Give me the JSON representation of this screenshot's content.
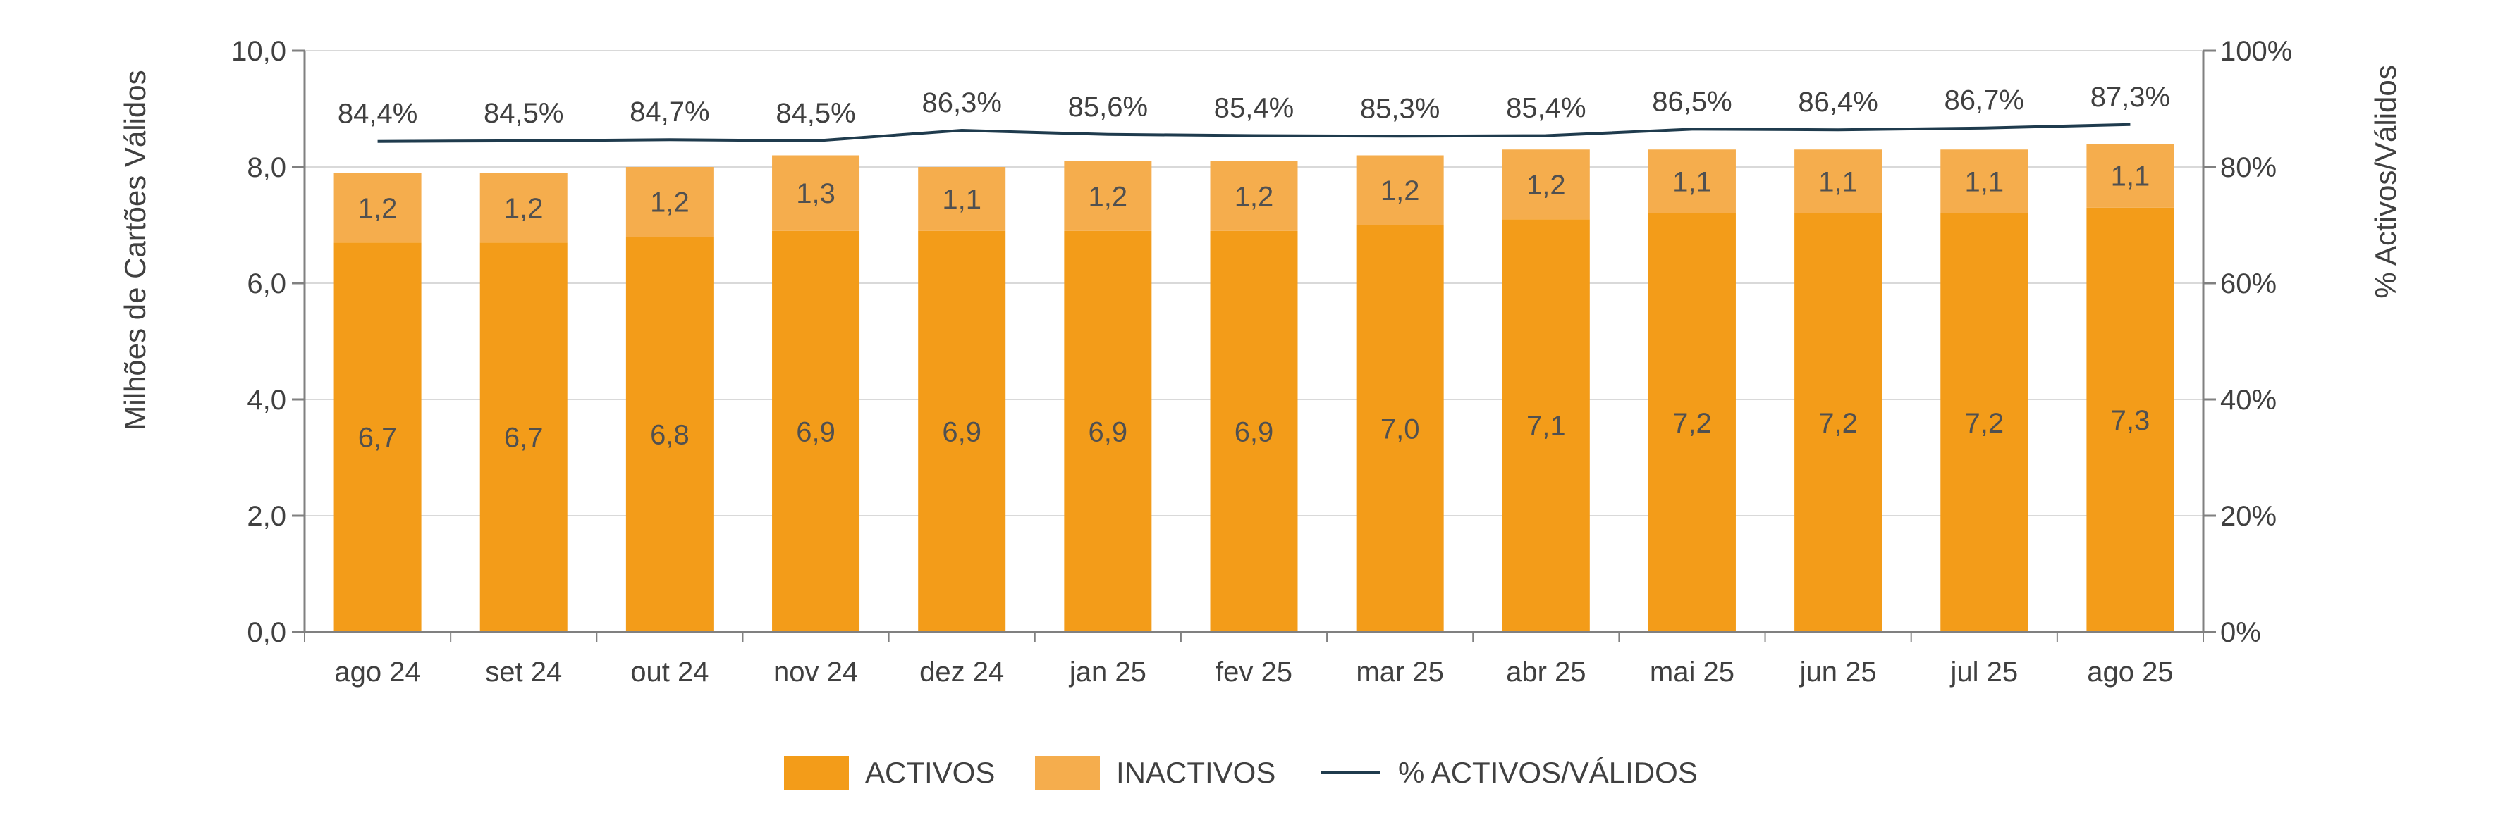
{
  "chart_data": {
    "type": "bar",
    "stacked": true,
    "categories": [
      "ago 24",
      "set 24",
      "out 24",
      "nov 24",
      "dez 24",
      "jan 25",
      "fev 25",
      "mar 25",
      "abr 25",
      "mai 25",
      "jun 25",
      "jul 25",
      "ago 25"
    ],
    "series": [
      {
        "name": "ACTIVOS",
        "type": "bar",
        "color": "#f39c19",
        "values": [
          6.7,
          6.7,
          6.8,
          6.9,
          6.9,
          6.9,
          6.9,
          7.0,
          7.1,
          7.2,
          7.2,
          7.2,
          7.3
        ],
        "labels": [
          "6,7",
          "6,7",
          "6,8",
          "6,9",
          "6,9",
          "6,9",
          "6,9",
          "7,0",
          "7,1",
          "7,2",
          "7,2",
          "7,2",
          "7,3"
        ]
      },
      {
        "name": "INACTIVOS",
        "type": "bar",
        "color": "#f5ad4d",
        "values": [
          1.2,
          1.2,
          1.2,
          1.3,
          1.1,
          1.2,
          1.2,
          1.2,
          1.2,
          1.1,
          1.1,
          1.1,
          1.1
        ],
        "labels": [
          "1,2",
          "1,2",
          "1,2",
          "1,3",
          "1,1",
          "1,2",
          "1,2",
          "1,2",
          "1,2",
          "1,1",
          "1,1",
          "1,1",
          "1,1"
        ]
      },
      {
        "name": "% ACTIVOS/VÁLIDOS",
        "type": "line",
        "axis": "right",
        "color": "#1f3b4d",
        "values": [
          84.4,
          84.5,
          84.7,
          84.5,
          86.3,
          85.6,
          85.4,
          85.3,
          85.4,
          86.5,
          86.4,
          86.7,
          87.3
        ],
        "labels": [
          "84,4%",
          "84,5%",
          "84,7%",
          "84,5%",
          "86,3%",
          "85,6%",
          "85,4%",
          "85,3%",
          "85,4%",
          "86,5%",
          "86,4%",
          "86,7%",
          "87,3%"
        ]
      }
    ],
    "ylabel": "Milhões de Cartões Válidos",
    "ylabel_right": "% Activos/Válidos",
    "ylim": [
      0,
      10
    ],
    "ylim_right": [
      0,
      100
    ],
    "yticks": [
      0,
      2,
      4,
      6,
      8,
      10
    ],
    "ytick_labels": [
      "0,0",
      "2,0",
      "4,0",
      "6,0",
      "8,0",
      "10,0"
    ],
    "yticks_right": [
      0,
      20,
      40,
      60,
      80,
      100
    ],
    "ytick_labels_right": [
      "0%",
      "20%",
      "40%",
      "60%",
      "80%",
      "100%"
    ],
    "grid": true,
    "legend": "bottom"
  }
}
